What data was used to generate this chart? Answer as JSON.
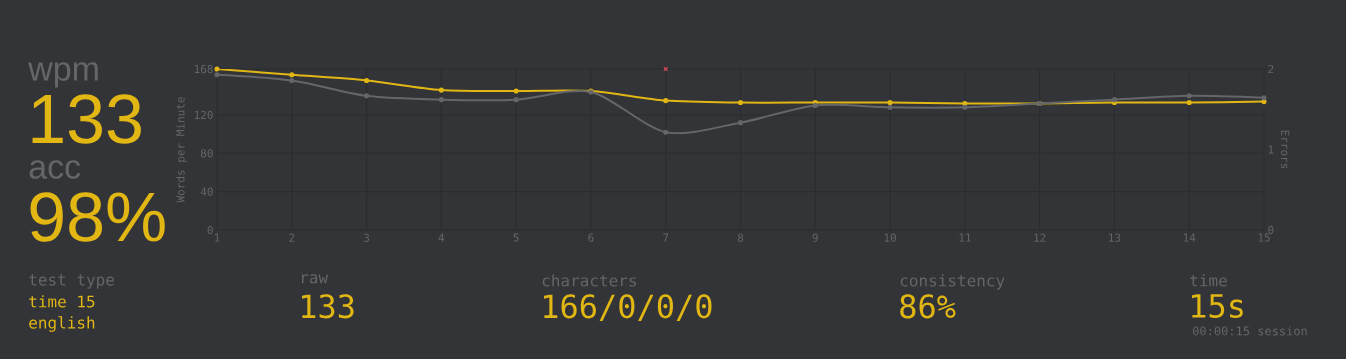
{
  "chart_data": {
    "type": "line",
    "xlabel": null,
    "ylabel": "Words per Minute",
    "y2label": "Errors",
    "x": [
      1,
      2,
      3,
      4,
      5,
      6,
      7,
      8,
      9,
      10,
      11,
      12,
      13,
      14,
      15
    ],
    "series": [
      {
        "color": "#e2b714",
        "marker": "circle",
        "values": [
          168,
          162,
          156,
          146,
          145,
          145,
          135,
          133,
          133,
          133,
          132,
          132,
          133,
          133,
          134
        ]
      },
      {
        "color": "#646669",
        "marker": "circle",
        "values": [
          162,
          156,
          140,
          136,
          136,
          144,
          102,
          112,
          130,
          128,
          128,
          132,
          136,
          140,
          138
        ]
      },
      {
        "type": "scatter",
        "axis": "y2",
        "color": "#ca4754",
        "marker": "cross",
        "x": [
          7
        ],
        "values": [
          2
        ]
      }
    ],
    "xlim": [
      1,
      15
    ],
    "xticks": [
      1,
      2,
      3,
      4,
      5,
      6,
      7,
      8,
      9,
      10,
      11,
      12,
      13,
      14,
      15
    ],
    "ylim": [
      0,
      168
    ],
    "yticks": [
      0,
      40,
      80,
      120,
      168
    ],
    "y2lim": [
      0,
      2
    ],
    "y2ticks": [
      0,
      1,
      2
    ],
    "grid": true,
    "annotations": [
      "wpm",
      "133",
      "acc",
      "98%",
      "test type",
      "time 15",
      "english",
      "raw",
      "133",
      "characters",
      "166/0/0/0",
      "consistency",
      "86%",
      "time",
      "15s",
      "00:00:15 session"
    ]
  }
}
